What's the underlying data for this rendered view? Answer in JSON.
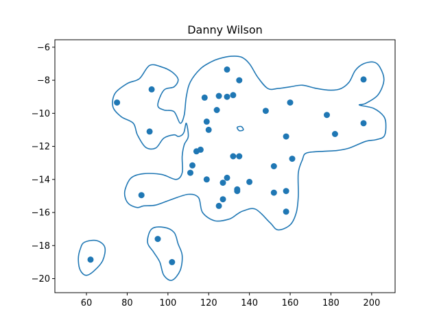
{
  "chart_data": {
    "type": "scatter",
    "title": "Danny Wilson",
    "xlabel": "",
    "ylabel": "",
    "xlim": [
      44.5,
      211.5
    ],
    "ylim": [
      -20.85,
      -5.55
    ],
    "xticks": [
      60,
      80,
      100,
      120,
      140,
      160,
      180,
      200
    ],
    "yticks": [
      -20,
      -18,
      -16,
      -14,
      -12,
      -10,
      -8,
      -6
    ],
    "grid": false,
    "color": "#1f77b4",
    "points": [
      {
        "x": 62,
        "y": -18.85
      },
      {
        "x": 75,
        "y": -9.35
      },
      {
        "x": 87,
        "y": -14.95
      },
      {
        "x": 91,
        "y": -11.1
      },
      {
        "x": 92,
        "y": -8.55
      },
      {
        "x": 95,
        "y": -17.6
      },
      {
        "x": 102,
        "y": -19.0
      },
      {
        "x": 111,
        "y": -13.6
      },
      {
        "x": 112,
        "y": -13.15
      },
      {
        "x": 114,
        "y": -12.3
      },
      {
        "x": 116,
        "y": -12.2
      },
      {
        "x": 118,
        "y": -9.05
      },
      {
        "x": 119,
        "y": -10.5
      },
      {
        "x": 119,
        "y": -14.0
      },
      {
        "x": 120,
        "y": -11.0
      },
      {
        "x": 124,
        "y": -9.8
      },
      {
        "x": 125,
        "y": -8.95
      },
      {
        "x": 125,
        "y": -15.6
      },
      {
        "x": 127,
        "y": -14.2
      },
      {
        "x": 127,
        "y": -15.2
      },
      {
        "x": 129,
        "y": -7.35
      },
      {
        "x": 129,
        "y": -9.0
      },
      {
        "x": 129,
        "y": -13.9
      },
      {
        "x": 132,
        "y": -8.9
      },
      {
        "x": 132,
        "y": -12.6
      },
      {
        "x": 134,
        "y": -14.6
      },
      {
        "x": 134,
        "y": -14.7
      },
      {
        "x": 135,
        "y": -8.0
      },
      {
        "x": 135,
        "y": -12.6
      },
      {
        "x": 140,
        "y": -14.15
      },
      {
        "x": 148,
        "y": -9.85
      },
      {
        "x": 152,
        "y": -13.2
      },
      {
        "x": 152,
        "y": -14.8
      },
      {
        "x": 158,
        "y": -11.4
      },
      {
        "x": 158,
        "y": -14.7
      },
      {
        "x": 158,
        "y": -15.95
      },
      {
        "x": 160,
        "y": -9.35
      },
      {
        "x": 161,
        "y": -12.75
      },
      {
        "x": 178,
        "y": -10.1
      },
      {
        "x": 182,
        "y": -11.25
      },
      {
        "x": 196,
        "y": -7.95
      },
      {
        "x": 196,
        "y": -10.6
      }
    ],
    "contours": [
      [
        [
          59,
          -17.8
        ],
        [
          65,
          -17.7
        ],
        [
          69,
          -18.1
        ],
        [
          68,
          -18.9
        ],
        [
          64,
          -19.5
        ],
        [
          60,
          -19.8
        ],
        [
          57,
          -19.5
        ],
        [
          56,
          -18.8
        ],
        [
          57,
          -18.2
        ],
        [
          59,
          -17.8
        ]
      ],
      [
        [
          92,
          -17.0
        ],
        [
          98,
          -16.9
        ],
        [
          103,
          -17.2
        ],
        [
          105,
          -17.9
        ],
        [
          107,
          -18.6
        ],
        [
          106,
          -19.5
        ],
        [
          102,
          -20.1
        ],
        [
          98,
          -19.8
        ],
        [
          96,
          -19.0
        ],
        [
          93,
          -18.4
        ],
        [
          90,
          -17.8
        ],
        [
          92,
          -17.0
        ]
      ],
      [
        [
          134,
          -10.85
        ],
        [
          136,
          -10.8
        ],
        [
          137,
          -11.0
        ],
        [
          135,
          -11.05
        ],
        [
          134,
          -10.85
        ]
      ],
      [
        [
          80,
          -8.2
        ],
        [
          86,
          -7.9
        ],
        [
          91,
          -7.1
        ],
        [
          97,
          -7.2
        ],
        [
          102,
          -7.5
        ],
        [
          105,
          -7.95
        ],
        [
          103,
          -8.4
        ],
        [
          98,
          -8.6
        ],
        [
          95,
          -9.5
        ],
        [
          98,
          -9.8
        ],
        [
          103,
          -9.9
        ],
        [
          106,
          -10.6
        ],
        [
          108,
          -10.1
        ],
        [
          109,
          -9.0
        ],
        [
          111,
          -8.1
        ],
        [
          116,
          -7.3
        ],
        [
          121,
          -6.9
        ],
        [
          125,
          -6.7
        ],
        [
          131,
          -6.55
        ],
        [
          136,
          -6.6
        ],
        [
          140,
          -7.0
        ],
        [
          144,
          -7.8
        ],
        [
          149,
          -8.5
        ],
        [
          154,
          -8.5
        ],
        [
          160,
          -8.4
        ],
        [
          166,
          -8.3
        ],
        [
          173,
          -8.5
        ],
        [
          180,
          -8.6
        ],
        [
          185,
          -8.5
        ],
        [
          189,
          -8.1
        ],
        [
          192,
          -7.4
        ],
        [
          196,
          -7.0
        ],
        [
          201,
          -6.9
        ],
        [
          204,
          -7.2
        ],
        [
          206,
          -8.0
        ],
        [
          203,
          -8.9
        ],
        [
          197,
          -9.4
        ],
        [
          194,
          -9.5
        ],
        [
          201,
          -9.7
        ],
        [
          206,
          -10.2
        ],
        [
          207,
          -10.8
        ],
        [
          206,
          -11.4
        ],
        [
          202,
          -11.6
        ],
        [
          197,
          -11.7
        ],
        [
          189,
          -12.1
        ],
        [
          183,
          -12.25
        ],
        [
          176,
          -12.3
        ],
        [
          168,
          -12.4
        ],
        [
          166,
          -12.8
        ],
        [
          164,
          -13.6
        ],
        [
          164,
          -15.0
        ],
        [
          163,
          -16.0
        ],
        [
          160,
          -16.75
        ],
        [
          154,
          -17.05
        ],
        [
          150,
          -16.6
        ],
        [
          143,
          -15.8
        ],
        [
          137,
          -15.9
        ],
        [
          134,
          -16.1
        ],
        [
          130,
          -16.4
        ],
        [
          123,
          -16.5
        ],
        [
          117,
          -16.0
        ],
        [
          115,
          -15.1
        ],
        [
          110,
          -14.9
        ],
        [
          102,
          -15.2
        ],
        [
          94,
          -15.55
        ],
        [
          88,
          -15.6
        ],
        [
          85,
          -15.7
        ],
        [
          81,
          -15.5
        ],
        [
          79,
          -15.1
        ],
        [
          79,
          -14.6
        ],
        [
          82,
          -13.9
        ],
        [
          88,
          -13.65
        ],
        [
          97,
          -13.7
        ],
        [
          104,
          -14.0
        ],
        [
          107,
          -13.6
        ],
        [
          107,
          -12.6
        ],
        [
          108,
          -11.9
        ],
        [
          110,
          -11.4
        ],
        [
          109,
          -10.6
        ],
        [
          108,
          -11.1
        ],
        [
          107,
          -11.3
        ],
        [
          105,
          -11.4
        ],
        [
          103,
          -11.3
        ],
        [
          98,
          -11.5
        ],
        [
          94,
          -12.1
        ],
        [
          89,
          -12.05
        ],
        [
          85,
          -11.3
        ],
        [
          83,
          -10.6
        ],
        [
          77,
          -10.2
        ],
        [
          73,
          -9.6
        ],
        [
          74,
          -8.8
        ],
        [
          80,
          -8.2
        ]
      ]
    ]
  }
}
